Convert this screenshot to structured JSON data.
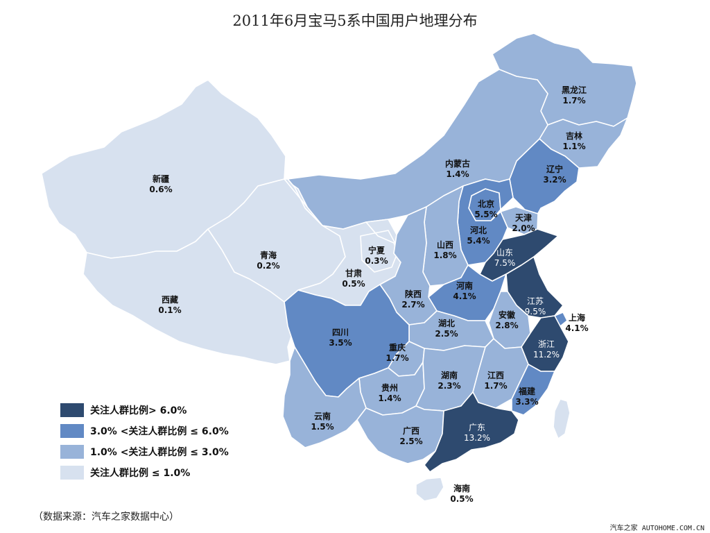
{
  "title": "2011年6月宝马5系中国用户地理分布",
  "source": "（数据来源：汽车之家数据中心）",
  "watermark": "汽车之家 AUTOHOME.COM.CN",
  "colors": {
    "tier1": "#2e4a6f",
    "tier2": "#6189c4",
    "tier3": "#98b3d9",
    "tier4": "#d7e1ef"
  },
  "legend": [
    {
      "label": "关注人群比例> 6.0%",
      "tier": "tier1"
    },
    {
      "label": "3.0% <关注人群比例 ≤ 6.0%",
      "tier": "tier2"
    },
    {
      "label": "1.0% <关注人群比例 ≤ 3.0%",
      "tier": "tier3"
    },
    {
      "label": "关注人群比例 ≤ 1.0%",
      "tier": "tier4"
    }
  ],
  "provinces": [
    {
      "id": "heilongjiang",
      "name": "黑龙江",
      "value": "1.7%",
      "tier": "tier3"
    },
    {
      "id": "jilin",
      "name": "吉林",
      "value": "1.1%",
      "tier": "tier3"
    },
    {
      "id": "liaoning",
      "name": "辽宁",
      "value": "3.2%",
      "tier": "tier2"
    },
    {
      "id": "neimenggu",
      "name": "内蒙古",
      "value": "1.4%",
      "tier": "tier3"
    },
    {
      "id": "xinjiang",
      "name": "新疆",
      "value": "0.6%",
      "tier": "tier4"
    },
    {
      "id": "xizang",
      "name": "西藏",
      "value": "0.1%",
      "tier": "tier4"
    },
    {
      "id": "qinghai",
      "name": "青海",
      "value": "0.2%",
      "tier": "tier4"
    },
    {
      "id": "gansu",
      "name": "甘肃",
      "value": "0.5%",
      "tier": "tier4"
    },
    {
      "id": "ningxia",
      "name": "宁夏",
      "value": "0.3%",
      "tier": "tier4"
    },
    {
      "id": "beijing",
      "name": "北京",
      "value": "5.5%",
      "tier": "tier2"
    },
    {
      "id": "tianjin",
      "name": "天津",
      "value": "2.0%",
      "tier": "tier3"
    },
    {
      "id": "hebei",
      "name": "河北",
      "value": "5.4%",
      "tier": "tier2"
    },
    {
      "id": "shanxi",
      "name": "山西",
      "value": "1.8%",
      "tier": "tier3"
    },
    {
      "id": "shandong",
      "name": "山东",
      "value": "7.5%",
      "tier": "tier1"
    },
    {
      "id": "henan",
      "name": "河南",
      "value": "4.1%",
      "tier": "tier2"
    },
    {
      "id": "shaanxi",
      "name": "陕西",
      "value": "2.7%",
      "tier": "tier3"
    },
    {
      "id": "jiangsu",
      "name": "江苏",
      "value": "9.5%",
      "tier": "tier1"
    },
    {
      "id": "shanghai",
      "name": "上海",
      "value": "4.1%",
      "tier": "tier2"
    },
    {
      "id": "anhui",
      "name": "安徽",
      "value": "2.8%",
      "tier": "tier3"
    },
    {
      "id": "hubei",
      "name": "湖北",
      "value": "2.5%",
      "tier": "tier3"
    },
    {
      "id": "sichuan",
      "name": "四川",
      "value": "3.5%",
      "tier": "tier2"
    },
    {
      "id": "chongqing",
      "name": "重庆",
      "value": "1.7%",
      "tier": "tier3"
    },
    {
      "id": "zhejiang",
      "name": "浙江",
      "value": "11.2%",
      "tier": "tier1"
    },
    {
      "id": "guizhou",
      "name": "贵州",
      "value": "1.4%",
      "tier": "tier3"
    },
    {
      "id": "hunan",
      "name": "湖南",
      "value": "2.3%",
      "tier": "tier3"
    },
    {
      "id": "jiangxi",
      "name": "江西",
      "value": "1.7%",
      "tier": "tier3"
    },
    {
      "id": "fujian",
      "name": "福建",
      "value": "3.3%",
      "tier": "tier2"
    },
    {
      "id": "yunnan",
      "name": "云南",
      "value": "1.5%",
      "tier": "tier3"
    },
    {
      "id": "guangxi",
      "name": "广西",
      "value": "2.5%",
      "tier": "tier3"
    },
    {
      "id": "guangdong",
      "name": "广东",
      "value": "13.2%",
      "tier": "tier1"
    },
    {
      "id": "hainan",
      "name": "海南",
      "value": "0.5%",
      "tier": "tier4"
    },
    {
      "id": "taiwan",
      "name": "",
      "value": "",
      "tier": "tier4"
    }
  ]
}
